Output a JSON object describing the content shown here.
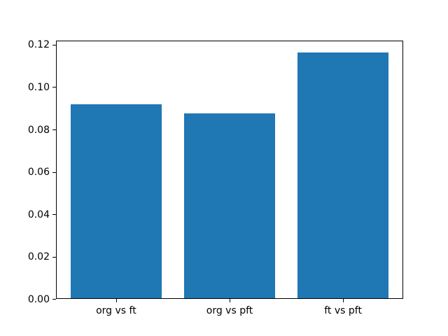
{
  "figure": {
    "background": "#ffffff"
  },
  "chart_data": {
    "type": "bar",
    "title": "",
    "xlabel": "",
    "ylabel": "",
    "categories": [
      "org vs ft",
      "org vs pft",
      "ft vs pft"
    ],
    "values": [
      0.0918,
      0.0877,
      0.1164
    ],
    "bar_color": "#1f77b4",
    "bar_width_fraction": 0.8,
    "ylim": [
      0,
      0.1221
    ],
    "yticks": [
      0.0,
      0.02,
      0.04,
      0.06,
      0.08,
      0.1,
      0.12
    ],
    "ytick_decimals": 2,
    "xlim": [
      -0.53,
      2.53
    ],
    "grid": false,
    "legend": false,
    "axis_color": "#000000",
    "text_color": "#000000"
  }
}
